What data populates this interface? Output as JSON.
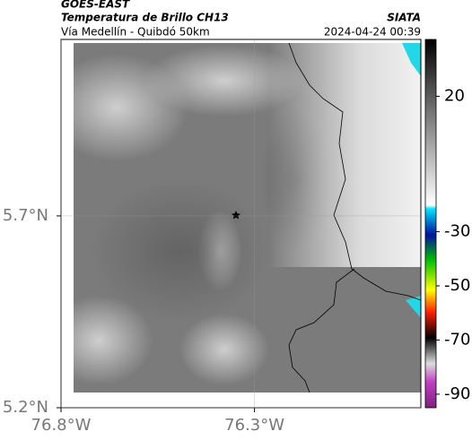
{
  "header": {
    "title": "GOES-EAST",
    "subtitle": "Temperatura de Brillo CH13",
    "region": "Vía Medellín - Quibdó 50km",
    "source": "SIATA",
    "timestamp": "2024-04-24 00:39"
  },
  "map": {
    "xlim": [
      -76.8,
      -75.87
    ],
    "ylim": [
      5.2,
      6.16
    ],
    "xticks": [
      {
        "value": -76.8,
        "label": "76.8°W"
      },
      {
        "value": -76.3,
        "label": "76.3°W"
      }
    ],
    "yticks": [
      {
        "value": 5.2,
        "label": "5.2°N"
      },
      {
        "value": 5.7,
        "label": "5.7°N"
      }
    ]
  },
  "colorbar": {
    "lim": [
      -95,
      41
    ],
    "ticks": [
      20,
      -30,
      -50,
      -70,
      -90
    ]
  }
}
